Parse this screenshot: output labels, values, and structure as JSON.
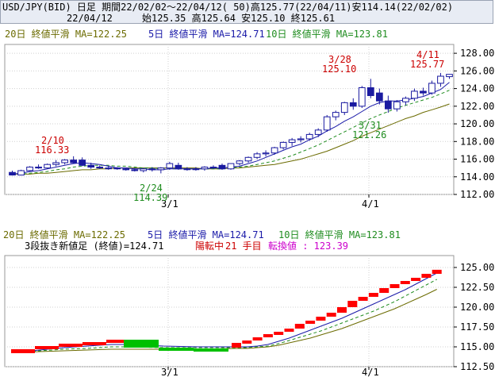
{
  "header": {
    "title_line": "USD/JPY(BID) 日足 期間22/02/02～22/04/12( 50)高125.77(22/04/11)安114.14(22/02/02)",
    "date": "22/04/12",
    "ohlc": "始125.35 高125.64 安125.10 終125.61"
  },
  "main_legend": {
    "ma20": "20日 終値平滑 MA=122.25",
    "ma5": "5日 終値平滑 MA=124.71",
    "ma10": "10日 終値平滑 MA=123.81"
  },
  "sub_legend": {
    "ma20": "20日 終値平滑 MA=122.25",
    "ma5": "5日 終値平滑 MA=124.71",
    "ma10": "10日 終値平滑 MA=123.81",
    "indicator": "3段抜き新値足 (終値)=124.71",
    "state": "陽転中",
    "count_label": "21 手目",
    "reversal": "転換値 : 123.39"
  },
  "annotations": {
    "high1_date": "2/10",
    "high1_value": "116.33",
    "low1_date": "2/24",
    "low1_value": "114.39",
    "high2_date": "3/28",
    "high2_value": "125.10",
    "low2_date": "3/31",
    "low2_value": "121.26",
    "high3_date": "4/11",
    "high3_value": "125.77"
  },
  "colors": {
    "up_candle": "#ffffff",
    "down_candle": "#1a1aa0",
    "candle_outline": "#1a1aa0",
    "ma5": "#1a1aa8",
    "ma10": "#1e8c1e",
    "ma20": "#6b6b00",
    "high_label": "#cc0000",
    "low_label": "#1e8c1e",
    "brick_up": "#ff0000",
    "brick_down": "#00c000",
    "grid": "#d0d0d0"
  },
  "chart_data": [
    {
      "type": "candlestick",
      "title": "USD/JPY(BID) 日足",
      "ylim": [
        112,
        129
      ],
      "yticks": [
        "112.00",
        "114.00",
        "116.00",
        "118.00",
        "120.00",
        "122.00",
        "124.00",
        "126.00",
        "128.00"
      ],
      "xticks": [
        "3/1",
        "4/1"
      ],
      "grid": true,
      "candles": [
        {
          "o": 114.5,
          "h": 114.7,
          "l": 114.14,
          "c": 114.2
        },
        {
          "o": 114.2,
          "h": 114.8,
          "l": 114.15,
          "c": 114.7
        },
        {
          "o": 114.7,
          "h": 115.2,
          "l": 114.6,
          "c": 115.1
        },
        {
          "o": 115.1,
          "h": 115.4,
          "l": 114.9,
          "c": 115.0
        },
        {
          "o": 115.0,
          "h": 115.5,
          "l": 114.9,
          "c": 115.4
        },
        {
          "o": 115.4,
          "h": 115.9,
          "l": 115.2,
          "c": 115.6
        },
        {
          "o": 115.6,
          "h": 116.0,
          "l": 115.4,
          "c": 115.9
        },
        {
          "o": 115.9,
          "h": 116.33,
          "l": 115.5,
          "c": 115.6
        },
        {
          "o": 115.9,
          "h": 116.2,
          "l": 115.2,
          "c": 115.3
        },
        {
          "o": 115.3,
          "h": 115.6,
          "l": 114.9,
          "c": 115.1
        },
        {
          "o": 115.1,
          "h": 115.3,
          "l": 114.9,
          "c": 115.0
        },
        {
          "o": 115.0,
          "h": 115.2,
          "l": 114.8,
          "c": 115.0
        },
        {
          "o": 115.0,
          "h": 115.1,
          "l": 114.8,
          "c": 114.9
        },
        {
          "o": 114.9,
          "h": 115.0,
          "l": 114.7,
          "c": 114.8
        },
        {
          "o": 114.8,
          "h": 115.0,
          "l": 114.6,
          "c": 114.7
        },
        {
          "o": 114.7,
          "h": 115.0,
          "l": 114.5,
          "c": 114.9
        },
        {
          "o": 114.9,
          "h": 115.1,
          "l": 114.6,
          "c": 114.8
        },
        {
          "o": 114.8,
          "h": 115.1,
          "l": 114.39,
          "c": 115.0
        },
        {
          "o": 115.0,
          "h": 115.7,
          "l": 114.8,
          "c": 115.5
        },
        {
          "o": 115.3,
          "h": 115.6,
          "l": 114.8,
          "c": 114.9
        },
        {
          "o": 114.9,
          "h": 115.1,
          "l": 114.7,
          "c": 114.9
        },
        {
          "o": 114.9,
          "h": 115.1,
          "l": 114.7,
          "c": 114.9
        },
        {
          "o": 114.9,
          "h": 115.2,
          "l": 114.7,
          "c": 115.1
        },
        {
          "o": 115.1,
          "h": 115.3,
          "l": 114.9,
          "c": 115.0
        },
        {
          "o": 115.3,
          "h": 115.5,
          "l": 114.8,
          "c": 114.9
        },
        {
          "o": 114.9,
          "h": 115.5,
          "l": 114.8,
          "c": 115.5
        },
        {
          "o": 115.5,
          "h": 115.9,
          "l": 115.3,
          "c": 115.8
        },
        {
          "o": 115.8,
          "h": 116.3,
          "l": 115.6,
          "c": 116.2
        },
        {
          "o": 116.2,
          "h": 116.8,
          "l": 116.0,
          "c": 116.6
        },
        {
          "o": 116.6,
          "h": 117.0,
          "l": 116.3,
          "c": 116.7
        },
        {
          "o": 116.7,
          "h": 117.4,
          "l": 116.5,
          "c": 117.3
        },
        {
          "o": 117.3,
          "h": 118.0,
          "l": 117.1,
          "c": 117.9
        },
        {
          "o": 117.9,
          "h": 118.4,
          "l": 117.5,
          "c": 118.2
        },
        {
          "o": 118.2,
          "h": 118.6,
          "l": 117.9,
          "c": 118.3
        },
        {
          "o": 118.3,
          "h": 119.0,
          "l": 118.1,
          "c": 118.8
        },
        {
          "o": 118.8,
          "h": 119.5,
          "l": 118.5,
          "c": 119.3
        },
        {
          "o": 119.3,
          "h": 121.0,
          "l": 119.1,
          "c": 120.8
        },
        {
          "o": 120.8,
          "h": 121.5,
          "l": 120.4,
          "c": 121.3
        },
        {
          "o": 121.3,
          "h": 122.5,
          "l": 121.0,
          "c": 122.4
        },
        {
          "o": 122.4,
          "h": 122.9,
          "l": 121.6,
          "c": 122.0
        },
        {
          "o": 122.0,
          "h": 124.3,
          "l": 121.8,
          "c": 124.1
        },
        {
          "o": 124.1,
          "h": 125.1,
          "l": 122.9,
          "c": 123.2
        },
        {
          "o": 123.5,
          "h": 124.0,
          "l": 122.2,
          "c": 122.6
        },
        {
          "o": 122.6,
          "h": 123.2,
          "l": 121.26,
          "c": 121.7
        },
        {
          "o": 121.7,
          "h": 122.7,
          "l": 121.4,
          "c": 122.5
        },
        {
          "o": 122.5,
          "h": 123.1,
          "l": 122.1,
          "c": 122.9
        },
        {
          "o": 122.9,
          "h": 124.0,
          "l": 122.6,
          "c": 123.7
        },
        {
          "o": 123.7,
          "h": 124.1,
          "l": 123.2,
          "c": 123.5
        },
        {
          "o": 123.5,
          "h": 124.9,
          "l": 123.3,
          "c": 124.6
        },
        {
          "o": 124.6,
          "h": 125.77,
          "l": 124.2,
          "c": 125.4
        },
        {
          "o": 125.35,
          "h": 125.64,
          "l": 125.1,
          "c": 125.61
        }
      ],
      "ma5": [
        114.3,
        114.4,
        114.6,
        114.7,
        114.9,
        115.1,
        115.3,
        115.5,
        115.6,
        115.5,
        115.4,
        115.2,
        115.0,
        115.0,
        114.9,
        114.9,
        114.8,
        114.8,
        114.9,
        114.9,
        114.9,
        114.9,
        114.9,
        115.0,
        115.0,
        115.1,
        115.2,
        115.5,
        115.8,
        116.2,
        116.6,
        117.0,
        117.4,
        117.7,
        118.2,
        118.6,
        119.2,
        119.7,
        120.3,
        120.8,
        121.4,
        122.0,
        122.4,
        122.6,
        122.6,
        122.7,
        122.9,
        123.1,
        123.5,
        123.9,
        124.71
      ],
      "ma10": [
        114.3,
        114.3,
        114.4,
        114.5,
        114.6,
        114.8,
        114.9,
        115.1,
        115.2,
        115.3,
        115.3,
        115.3,
        115.2,
        115.2,
        115.1,
        115.0,
        115.0,
        114.9,
        114.9,
        114.9,
        114.9,
        114.9,
        114.9,
        114.9,
        114.9,
        115.0,
        115.1,
        115.2,
        115.4,
        115.6,
        115.8,
        116.1,
        116.4,
        116.8,
        117.2,
        117.6,
        118.1,
        118.6,
        119.1,
        119.6,
        120.1,
        120.6,
        121.0,
        121.4,
        121.8,
        122.1,
        122.4,
        122.7,
        123.0,
        123.4,
        123.81
      ],
      "ma20": [
        114.3,
        114.3,
        114.3,
        114.4,
        114.4,
        114.5,
        114.6,
        114.7,
        114.8,
        114.8,
        114.9,
        114.9,
        115.0,
        115.0,
        115.0,
        115.0,
        115.0,
        115.0,
        115.0,
        115.0,
        115.0,
        115.0,
        114.9,
        114.9,
        114.9,
        115.0,
        115.0,
        115.1,
        115.2,
        115.3,
        115.4,
        115.6,
        115.8,
        116.0,
        116.3,
        116.6,
        116.9,
        117.3,
        117.7,
        118.1,
        118.6,
        119.0,
        119.4,
        119.8,
        120.2,
        120.6,
        120.9,
        121.3,
        121.6,
        121.9,
        122.25
      ]
    },
    {
      "type": "bar",
      "title": "3段抜き新値足 (終値)",
      "ylim": [
        112.5,
        126.5
      ],
      "yticks": [
        "112.50",
        "115.00",
        "117.50",
        "120.00",
        "122.50",
        "125.00"
      ],
      "xticks": [
        "3/1",
        "4/1"
      ],
      "bricks": [
        {
          "d": "up",
          "lo": 114.2,
          "hi": 114.7
        },
        {
          "d": "up",
          "lo": 114.7,
          "hi": 115.1
        },
        {
          "d": "up",
          "lo": 115.1,
          "hi": 115.4
        },
        {
          "d": "up",
          "lo": 115.4,
          "hi": 115.6
        },
        {
          "d": "up",
          "lo": 115.6,
          "hi": 115.9
        },
        {
          "d": "down",
          "lo": 114.9,
          "hi": 115.9
        },
        {
          "d": "down",
          "lo": 114.8,
          "hi": 114.9
        },
        {
          "d": "down",
          "lo": 114.7,
          "hi": 114.8
        },
        {
          "d": "up",
          "lo": 114.9,
          "hi": 115.5
        },
        {
          "d": "up",
          "lo": 115.5,
          "hi": 115.8
        },
        {
          "d": "up",
          "lo": 115.8,
          "hi": 116.2
        },
        {
          "d": "up",
          "lo": 116.2,
          "hi": 116.6
        },
        {
          "d": "up",
          "lo": 116.6,
          "hi": 116.9
        },
        {
          "d": "up",
          "lo": 116.9,
          "hi": 117.3
        },
        {
          "d": "up",
          "lo": 117.3,
          "hi": 117.9
        },
        {
          "d": "up",
          "lo": 117.9,
          "hi": 118.3
        },
        {
          "d": "up",
          "lo": 118.3,
          "hi": 118.8
        },
        {
          "d": "up",
          "lo": 118.8,
          "hi": 119.3
        },
        {
          "d": "up",
          "lo": 119.3,
          "hi": 120.0
        },
        {
          "d": "up",
          "lo": 120.0,
          "hi": 120.8
        },
        {
          "d": "up",
          "lo": 120.8,
          "hi": 121.3
        },
        {
          "d": "up",
          "lo": 121.3,
          "hi": 121.8
        },
        {
          "d": "up",
          "lo": 121.8,
          "hi": 122.4
        },
        {
          "d": "up",
          "lo": 122.4,
          "hi": 122.9
        },
        {
          "d": "up",
          "lo": 122.9,
          "hi": 123.3
        },
        {
          "d": "up",
          "lo": 123.3,
          "hi": 123.7
        },
        {
          "d": "up",
          "lo": 123.7,
          "hi": 124.2
        },
        {
          "d": "up",
          "lo": 124.2,
          "hi": 124.71
        }
      ],
      "ma5": [
        114.3,
        114.6,
        114.9,
        115.1,
        115.3,
        115.3,
        115.1,
        115.0,
        115.0,
        115.0,
        115.1,
        115.3,
        115.7,
        116.1,
        116.6,
        117.1,
        117.6,
        118.1,
        118.6,
        119.2,
        119.8,
        120.4,
        121.0,
        121.6,
        122.2,
        122.9,
        123.6,
        124.3
      ],
      "ma10": [
        114.3,
        114.5,
        114.7,
        114.8,
        115.0,
        115.0,
        114.9,
        114.9,
        114.9,
        114.9,
        115.0,
        115.1,
        115.4,
        115.8,
        116.2,
        116.6,
        117.0,
        117.5,
        118.0,
        118.5,
        119.0,
        119.5,
        120.1,
        120.7,
        121.4,
        122.1,
        122.8,
        123.5
      ],
      "ma20": [
        114.3,
        114.4,
        114.5,
        114.6,
        114.7,
        114.7,
        114.7,
        114.7,
        114.8,
        114.8,
        114.9,
        115.0,
        115.2,
        115.5,
        115.8,
        116.1,
        116.5,
        116.9,
        117.3,
        117.8,
        118.3,
        118.8,
        119.3,
        119.8,
        120.4,
        121.0,
        121.6,
        122.25
      ]
    }
  ]
}
